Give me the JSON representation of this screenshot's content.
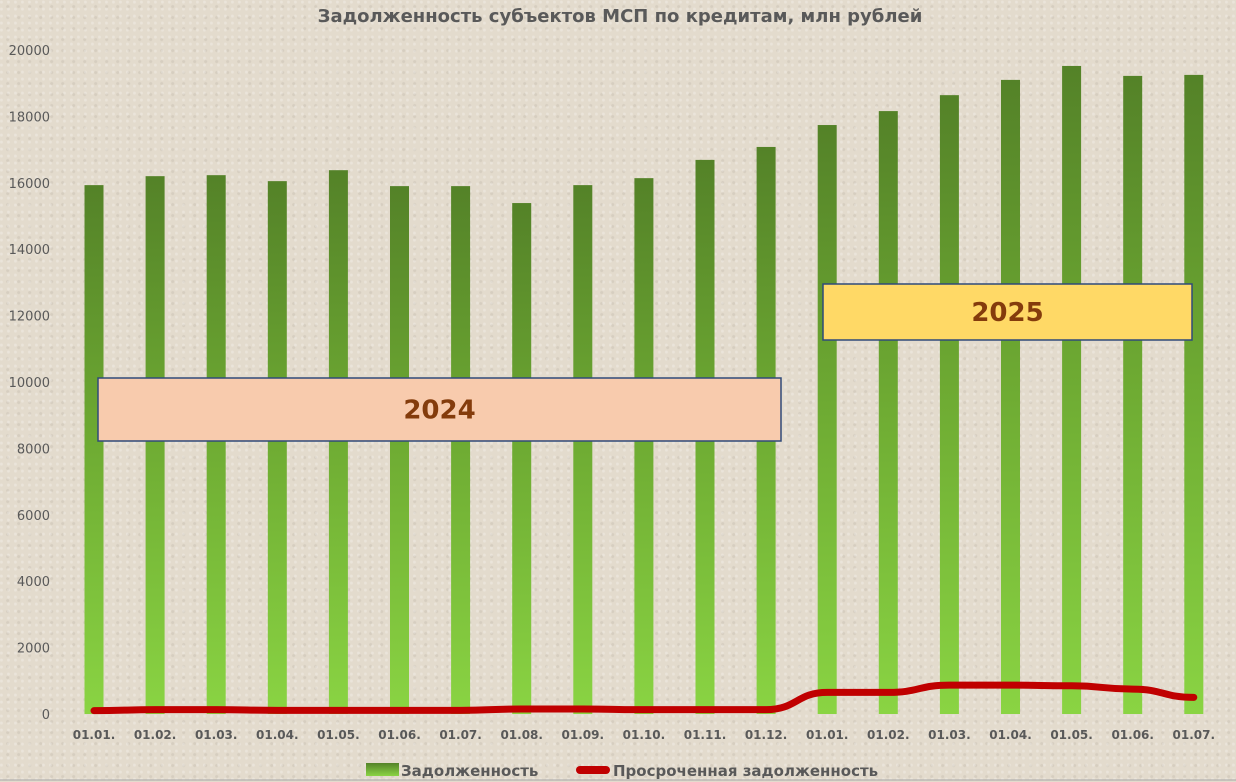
{
  "chart_data": {
    "type": "bar",
    "title": "Задолженность субъектов МСП по кредитам, млн рублей",
    "xlabel": "",
    "ylabel": "",
    "ylim": [
      0,
      20000
    ],
    "yticks": [
      0,
      2000,
      4000,
      6000,
      8000,
      10000,
      12000,
      14000,
      16000,
      18000,
      20000
    ],
    "grid": false,
    "legend_position": "bottom",
    "categories": [
      "01.01.",
      "01.02.",
      "01.03.",
      "01.04.",
      "01.05.",
      "01.06.",
      "01.07.",
      "01.08.",
      "01.09.",
      "01.10.",
      "01.11.",
      "01.12.",
      "01.01.",
      "01.02.",
      "01.03.",
      "01.04.",
      "01.05.",
      "01.06.",
      "01.07."
    ],
    "series": [
      {
        "name": "Задолженность",
        "type": "bar",
        "color": "#6aa234",
        "values": [
          15930,
          16200,
          16230,
          16050,
          16380,
          15900,
          15900,
          15390,
          15930,
          16140,
          16690,
          17080,
          17740,
          18160,
          18640,
          19100,
          19520,
          19220,
          19250
        ]
      },
      {
        "name": "Просроченная задолженность",
        "type": "line",
        "color": "#c00000",
        "values": [
          100,
          130,
          130,
          110,
          110,
          110,
          110,
          150,
          150,
          130,
          130,
          130,
          650,
          650,
          870,
          870,
          850,
          750,
          500
        ]
      }
    ],
    "annotations": [
      {
        "text": "2024",
        "fill": "#f8cbad",
        "text_color": "#843c0c",
        "spans": [
          "01.01.",
          "01.12."
        ]
      },
      {
        "text": "2025",
        "fill": "#ffd966",
        "text_color": "#843c0c",
        "spans": [
          "01.01.",
          "01.07."
        ]
      }
    ]
  }
}
